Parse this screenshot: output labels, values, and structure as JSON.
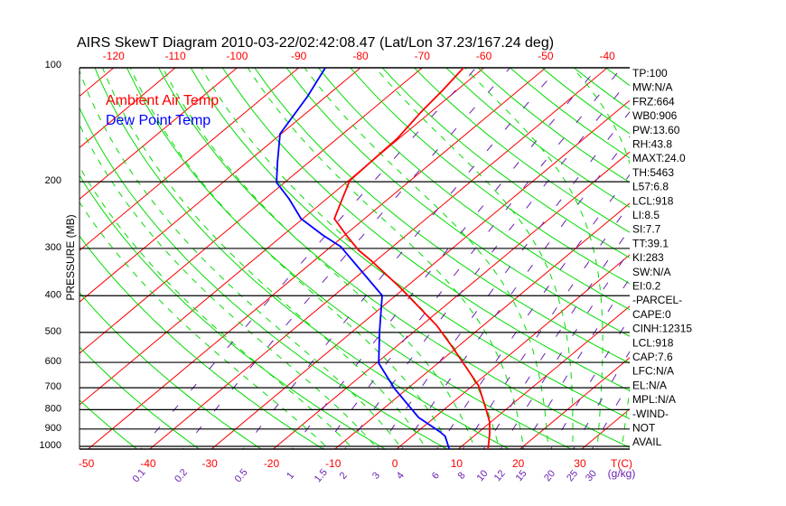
{
  "chart_data": {
    "type": "line",
    "title": "AIRS SkewT Diagram 2010-03-22/02:42:08.47 (Lat/Lon 37.23/167.24 deg)",
    "ylabel": "PRESSURE (MB)",
    "xlabel": "T(C)",
    "mixing_ratio_label": "(g/kg)",
    "y_scale": "log",
    "ylim": [
      1035,
      100
    ],
    "pressure_ticks": [
      100,
      200,
      300,
      400,
      500,
      600,
      700,
      800,
      900,
      1000
    ],
    "bottom_temp_ticks": [
      -50,
      -40,
      -30,
      -20,
      -10,
      0,
      10,
      20,
      30
    ],
    "top_temp_ticks": [
      -120,
      -110,
      -100,
      -90,
      -80,
      -70,
      -60,
      -50,
      -40
    ],
    "mixing_ratio_ticks": [
      0.1,
      0.2,
      0.5,
      1,
      1.5,
      2,
      3,
      4,
      6,
      8,
      10,
      12,
      15,
      20,
      25,
      30
    ],
    "legend": [
      "Ambient Air Temp",
      "Dew Point Temp"
    ],
    "legend_placement": "top-left",
    "series": [
      {
        "name": "Ambient Air Temp",
        "color": "#ff0000",
        "pressure": [
          100,
          114.7,
          130.2,
          153.5,
          171.4,
          198.7,
          218.3,
          250.3,
          276.5,
          303.5,
          326.1,
          380.2,
          478.8,
          543.3,
          692,
          785,
          862,
          926,
          1016
        ],
        "temperature": [
          -63.3,
          -62.3,
          -61.6,
          -60.3,
          -60.1,
          -59.8,
          -57.8,
          -54.9,
          -49.8,
          -44.8,
          -40.2,
          -30.9,
          -17.6,
          -11.1,
          1.0,
          6.1,
          9.8,
          12.1,
          14.8
        ]
      },
      {
        "name": "Dew Point Temp",
        "color": "#0000ff",
        "pressure": [
          100,
          119.2,
          149.4,
          178.1,
          200.9,
          221.9,
          250.3,
          276.5,
          296.9,
          344.4,
          399.5,
          497.7,
          603,
          703.7,
          838.6,
          915.7,
          941,
          1016
        ],
        "temperature": [
          -85.7,
          -83.0,
          -80.2,
          -75.0,
          -71.3,
          -66.1,
          -60.3,
          -53.6,
          -48.4,
          -40.3,
          -32.2,
          -25.6,
          -19.6,
          -12.1,
          -2.6,
          3.7,
          5.4,
          8.5
        ]
      }
    ]
  },
  "stats": [
    "TP:100",
    "MW:N/A",
    "FRZ:664",
    "WB0:906",
    "PW:13.60",
    "RH:43.8",
    "MAXT:24.0",
    "TH:5463",
    "L57:6.8",
    "LCL:918",
    "LI:8.5",
    "SI:7.7",
    "TT:39.1",
    "KI:283",
    "SW:N/A",
    "EI:0.2",
    "-PARCEL-",
    "CAPE:0",
    "CINH:12315",
    "LCL:918",
    "CAP:7.6",
    "LFC:N/A",
    "EL:N/A",
    "MPL:N/A",
    "-WIND-",
    "NOT",
    "AVAIL"
  ],
  "colors": {
    "isotherm": "#ff0000",
    "dry_adiabat": "#00dd00",
    "moist_adiabat": "#00dd00",
    "mixing_ratio": "#6a1fb0",
    "temp": "#ff0000",
    "dewpoint": "#0000ff"
  }
}
